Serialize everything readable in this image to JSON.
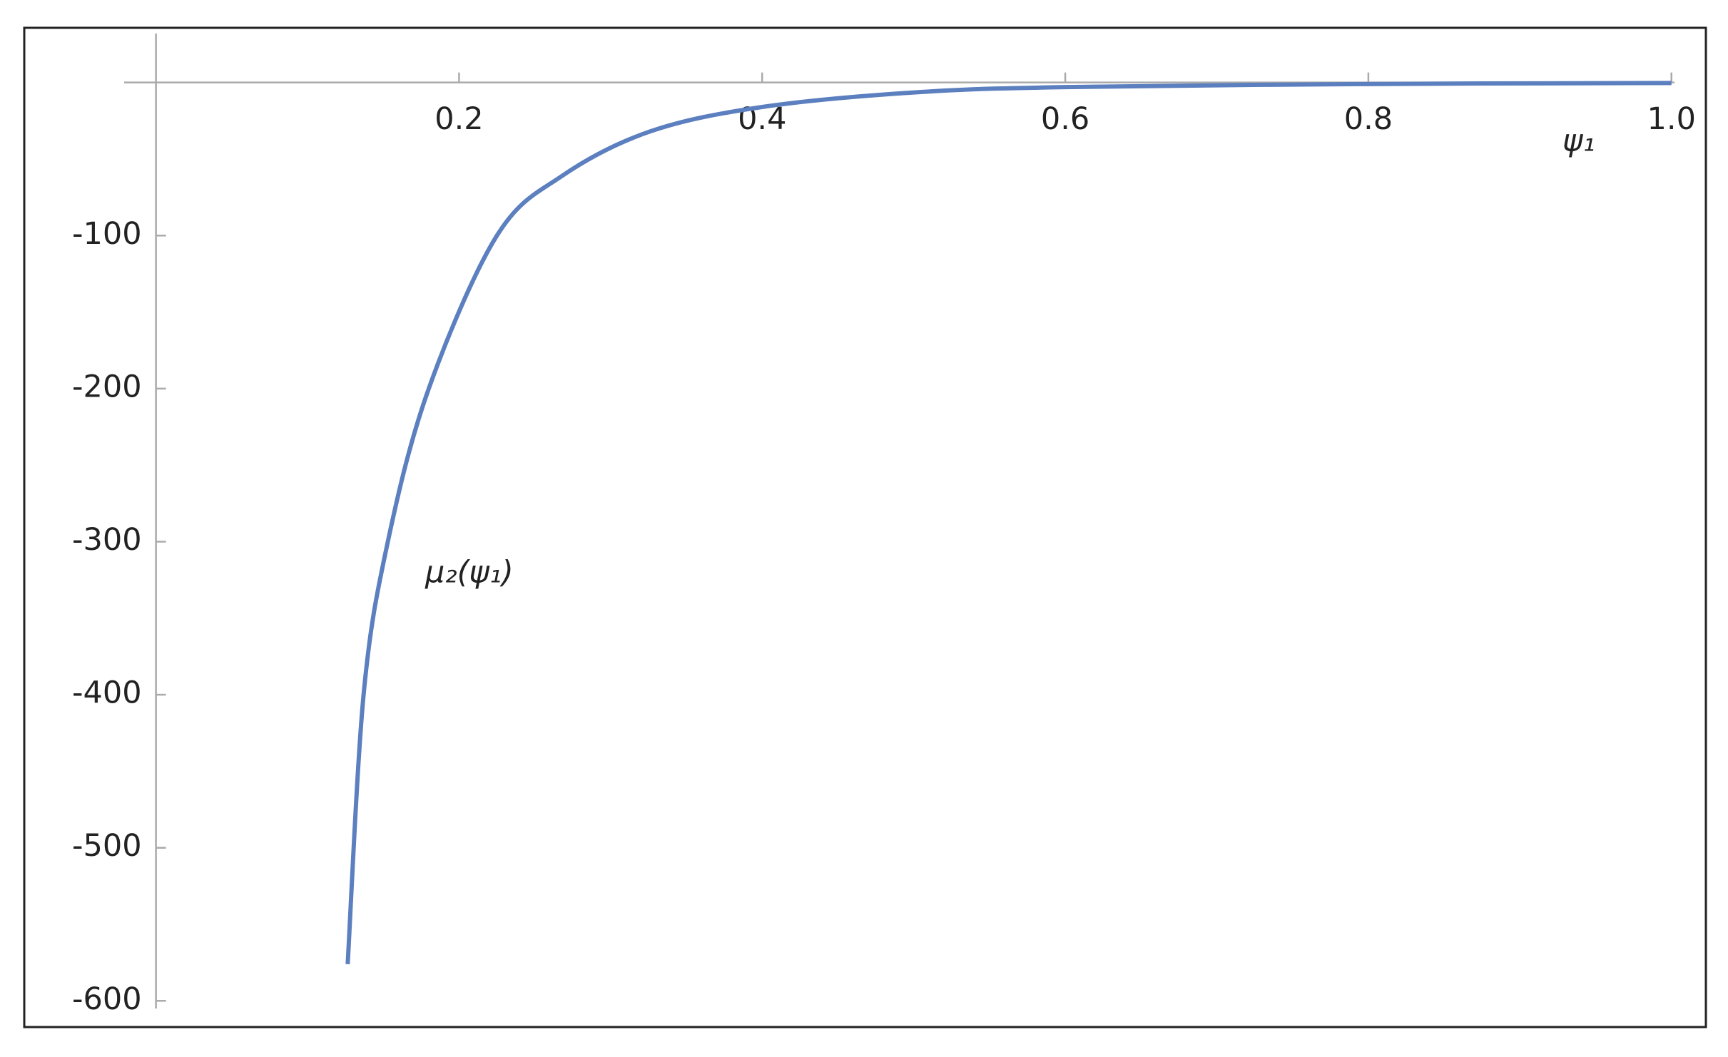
{
  "chart_data": {
    "type": "line",
    "x_label": "ψ₁",
    "annotation": "μ₂(ψ₁)",
    "series": [
      {
        "color": "#5b7fbf",
        "x": [
          0.1265,
          0.137,
          0.153,
          0.18,
          0.225,
          0.268,
          0.326,
          0.4,
          0.5,
          0.6,
          0.8,
          1.0
        ],
        "values": [
          -576,
          -400,
          -300,
          -200,
          -100,
          -61,
          -32,
          -16,
          -6.5,
          -3,
          -1,
          -0.3
        ]
      }
    ],
    "xlim": [
      -0.021,
      1.002
    ],
    "ylim": [
      -605,
      32
    ],
    "xticks": [
      0.2,
      0.4,
      0.6,
      0.8,
      {
        "value": 1,
        "label": "1.0"
      }
    ],
    "yticks": [
      -600,
      -500,
      -400,
      -300,
      -200,
      -100
    ]
  }
}
